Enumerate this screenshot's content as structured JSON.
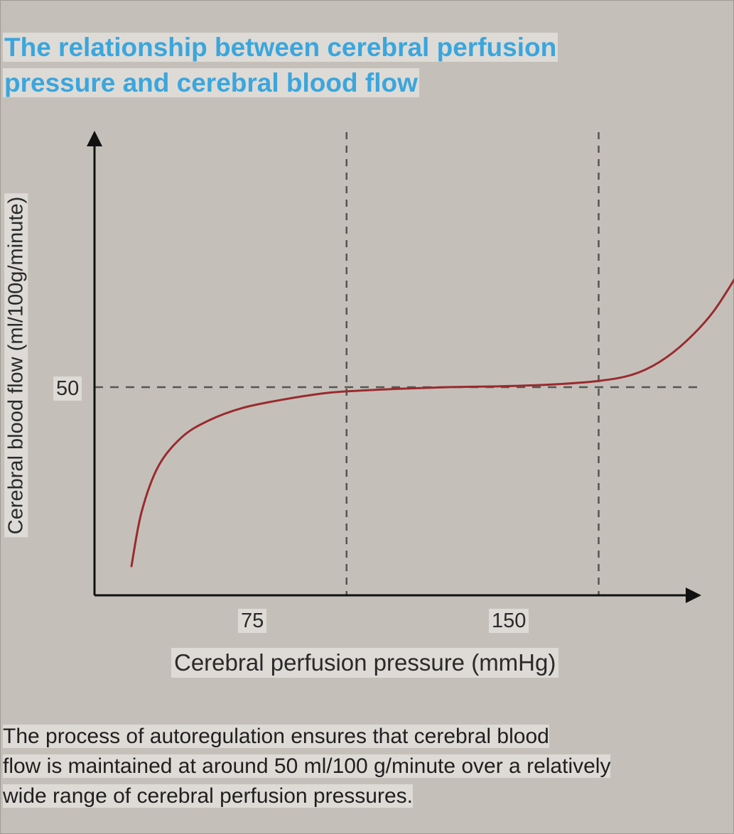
{
  "title": {
    "line1": "The relationship between cerebral perfusion",
    "line2": "pressure and cerebral blood flow"
  },
  "caption": {
    "line1": "The process of autoregulation ensures that cerebral blood",
    "line2": "flow is maintained at around 50 ml/100 g/minute over a relatively",
    "line3": "wide range of cerebral perfusion pressures."
  },
  "colors": {
    "title": "#3aa6dd",
    "curve": "#9b2a2e",
    "background": "#c4c0b9",
    "label_box": "#dedbd6",
    "dashed_line": "#555555"
  },
  "chart_data": {
    "type": "line",
    "title": "The relationship between cerebral perfusion pressure and cerebral blood flow",
    "xlabel": "Cerebral perfusion pressure (mmHg)",
    "ylabel": "Cerebral blood flow (ml/100g/minute)",
    "xlim": [
      0,
      202
    ],
    "ylim": [
      0,
      93
    ],
    "x_ticks": [
      {
        "value": 75,
        "label": "75"
      },
      {
        "value": 150,
        "label": "150"
      }
    ],
    "y_ticks": [
      {
        "value": 50,
        "label": "50"
      }
    ],
    "reference_lines": [
      {
        "axis": "x",
        "value": 75,
        "style": "dashed"
      },
      {
        "axis": "x",
        "value": 150,
        "style": "dashed"
      },
      {
        "axis": "y",
        "value": 50,
        "style": "dashed"
      }
    ],
    "grid": false,
    "series": [
      {
        "x": [
          11,
          14,
          19,
          26,
          34,
          44,
          56,
          68,
          75,
          90,
          105,
          120,
          135,
          150,
          160,
          168,
          176,
          184,
          192,
          198
        ],
        "y": [
          7,
          20,
          31,
          38,
          42,
          45,
          47,
          48.5,
          49,
          49.6,
          50,
          50.2,
          50.6,
          51.5,
          53,
          56,
          61,
          68,
          78,
          86
        ]
      }
    ]
  }
}
